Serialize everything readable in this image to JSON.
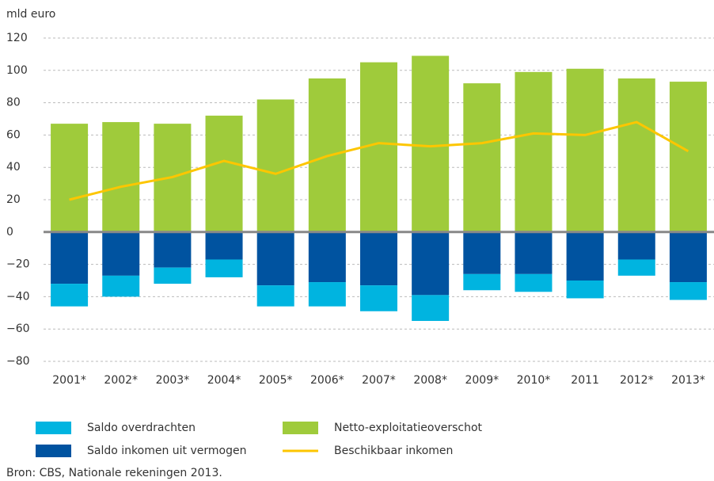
{
  "chart_data": {
    "type": "bar",
    "y_label": "mld euro",
    "source": "Bron: CBS, Nationale rekeningen 2013.",
    "categories": [
      "2001*",
      "2002*",
      "2003*",
      "2004*",
      "2005*",
      "2006*",
      "2007*",
      "2008*",
      "2009*",
      "2010*",
      "2011",
      "2012*",
      "2013*"
    ],
    "series": [
      {
        "name": "Saldo overdrachten",
        "type": "bar",
        "color": "#00b4e0",
        "values": [
          -14,
          -13,
          -10,
          -11,
          -13,
          -15,
          -16,
          -16,
          -10,
          -11,
          -11,
          -10,
          -11
        ]
      },
      {
        "name": "Saldo inkomen uit vermogen",
        "type": "bar",
        "color": "#0053a0",
        "values": [
          -32,
          -27,
          -22,
          -17,
          -33,
          -31,
          -33,
          -39,
          -26,
          -26,
          -30,
          -17,
          -31
        ]
      },
      {
        "name": "Netto-exploitatieoverschot",
        "type": "bar",
        "color": "#9fcb3b",
        "values": [
          67,
          68,
          67,
          72,
          82,
          95,
          105,
          109,
          92,
          99,
          101,
          95,
          93
        ]
      },
      {
        "name": "Beschikbaar inkomen",
        "type": "line",
        "color": "#fdc600",
        "values": [
          20,
          28,
          34,
          44,
          36,
          47,
          55,
          53,
          55,
          61,
          60,
          68,
          50
        ]
      }
    ],
    "ylim": [
      -80,
      120
    ],
    "yticks": [
      {
        "value": -80,
        "label": "−80"
      },
      {
        "value": -60,
        "label": "−60"
      },
      {
        "value": -40,
        "label": "−40"
      },
      {
        "value": -20,
        "label": "−20"
      },
      0,
      20,
      40,
      60,
      80,
      100,
      120
    ],
    "grid": true
  }
}
